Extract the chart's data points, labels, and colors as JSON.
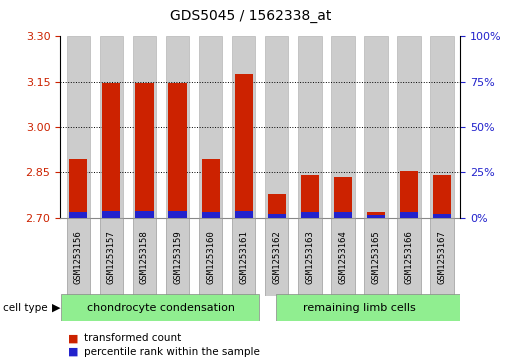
{
  "title": "GDS5045 / 1562338_at",
  "samples": [
    "GSM1253156",
    "GSM1253157",
    "GSM1253158",
    "GSM1253159",
    "GSM1253160",
    "GSM1253161",
    "GSM1253162",
    "GSM1253163",
    "GSM1253164",
    "GSM1253165",
    "GSM1253166",
    "GSM1253167"
  ],
  "red_values": [
    2.895,
    3.145,
    3.145,
    3.147,
    2.895,
    3.175,
    2.78,
    2.84,
    2.835,
    2.72,
    2.855,
    2.84
  ],
  "blue_values": [
    0.018,
    0.022,
    0.022,
    0.022,
    0.018,
    0.022,
    0.013,
    0.018,
    0.018,
    0.009,
    0.018,
    0.013
  ],
  "y_min": 2.7,
  "y_max": 3.3,
  "y_ticks_left": [
    2.7,
    2.85,
    3.0,
    3.15,
    3.3
  ],
  "y_ticks_right": [
    0,
    25,
    50,
    75,
    100
  ],
  "group1_label": "chondrocyte condensation",
  "group2_label": "remaining limb cells",
  "group1_count": 6,
  "group2_count": 6,
  "cell_type_label": "cell type",
  "legend1": "transformed count",
  "legend2": "percentile rank within the sample",
  "red_color": "#cc2200",
  "blue_color": "#2222cc",
  "bar_bg_color": "#cccccc",
  "group_bg": "#90ee90",
  "bar_width": 0.55
}
